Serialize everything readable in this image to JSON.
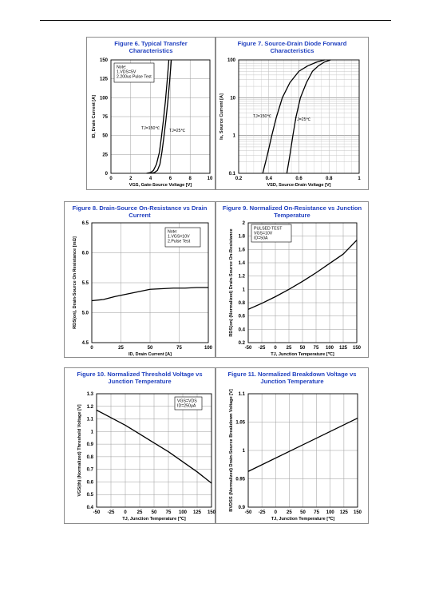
{
  "charts": [
    {
      "title_line1": "Figure 6. Typical Transfer Characteristics",
      "title_line2": "",
      "note_lines": [
        "Note:",
        "1.VDS=5V",
        "2.200us Pulse Test"
      ],
      "chart_data": {
        "type": "line",
        "title": "Figure 6. Typical Transfer Characteristics",
        "xlabel": "VGS, Gate-Source Voltage [V]",
        "ylabel": "ID, Drain Current [A]",
        "xlim": [
          0,
          10
        ],
        "ylim": [
          0,
          150
        ],
        "xticks": [
          0,
          2,
          4,
          6,
          8,
          10
        ],
        "yticks": [
          0,
          25,
          50,
          75,
          100,
          125,
          150
        ],
        "yscale": "linear",
        "grid": true,
        "series": [
          {
            "name": "TJ=150℃",
            "x": [
              3.6,
              4.0,
              4.3,
              4.6,
              4.9,
              5.1,
              5.3,
              5.5,
              5.7,
              5.85
            ],
            "y": [
              0,
              1,
              4,
              12,
              28,
              48,
              70,
              95,
              125,
              150
            ]
          },
          {
            "name": "TJ=25℃",
            "x": [
              4.0,
              4.4,
              4.7,
              4.95,
              5.15,
              5.35,
              5.55,
              5.75,
              5.95,
              6.1
            ],
            "y": [
              0,
              1,
              4,
              12,
              28,
              48,
              70,
              95,
              125,
              150
            ]
          }
        ]
      }
    },
    {
      "title_line1": "Figure 7. Source-Drain Diode Forward",
      "title_line2": "Characteristics",
      "note_lines": [],
      "chart_data": {
        "type": "line",
        "title": "Figure 7. Source-Drain Diode Forward Characteristics",
        "xlabel": "VSD, Source-Drain Voltage [V]",
        "ylabel": "Is, Source Current [A]",
        "xlim": [
          0.2,
          1.0
        ],
        "ylim": [
          0.1,
          100
        ],
        "xticks": [
          0.2,
          0.4,
          0.6,
          0.8,
          1
        ],
        "yticks": [
          0.1,
          1,
          10,
          100
        ],
        "yscale": "log",
        "grid": true,
        "series": [
          {
            "name": "TJ=150℃",
            "x": [
              0.36,
              0.39,
              0.42,
              0.45,
              0.49,
              0.54,
              0.6,
              0.66,
              0.72,
              0.77
            ],
            "y": [
              0.1,
              0.3,
              1,
              3,
              10,
              25,
              50,
              70,
              88,
              100
            ]
          },
          {
            "name": "TJ=25℃",
            "x": [
              0.52,
              0.54,
              0.56,
              0.58,
              0.61,
              0.65,
              0.69,
              0.73,
              0.77,
              0.81
            ],
            "y": [
              0.1,
              0.3,
              1,
              3,
              10,
              25,
              50,
              70,
              88,
              100
            ]
          }
        ]
      }
    },
    {
      "title_line1": "Figure 8. Drain-Source On-Resistance vs Drain",
      "title_line2": "Current",
      "note_lines": [
        "Note:",
        "1.VGS=10V",
        "2.Pulse Test"
      ],
      "chart_data": {
        "type": "line",
        "title": "Figure 8. Drain-Source On-Resistance vs Drain Current",
        "xlabel": "ID, Drain Current [A]",
        "ylabel": "RDS(on), Drain-Source On Resistance [mΩ]",
        "xlim": [
          0,
          100
        ],
        "ylim": [
          4.5,
          6.5
        ],
        "xticks": [
          0,
          25,
          50,
          75,
          100
        ],
        "yticks": [
          4.5,
          5.0,
          5.5,
          6.0,
          6.5
        ],
        "ytick_labels": [
          "4.5",
          "5.0",
          "5.5",
          "6.0",
          "6.5"
        ],
        "yscale": "linear",
        "grid": true,
        "series": [
          {
            "name": "",
            "x": [
              0,
              10,
              20,
              30,
              40,
              50,
              60,
              70,
              80,
              90,
              100
            ],
            "y": [
              5.2,
              5.22,
              5.27,
              5.31,
              5.35,
              5.39,
              5.4,
              5.41,
              5.41,
              5.42,
              5.42
            ]
          }
        ]
      }
    },
    {
      "title_line1": "Figure 9. Normalized On-Resistance vs Junction",
      "title_line2": "Temperature",
      "note_lines": [
        "PULSED TEST",
        "VGS=10V",
        "ID=50A"
      ],
      "chart_data": {
        "type": "line",
        "title": "Figure 9. Normalized On-Resistance vs Junction Temperature",
        "xlabel": "TJ, Junction Temperature [℃]",
        "ylabel": "RDS(on) (Normalized) Drain-Source On-Resistance",
        "xlim": [
          -50,
          150
        ],
        "ylim": [
          0.2,
          2.0
        ],
        "xticks": [
          -50,
          -25,
          0,
          25,
          50,
          75,
          100,
          125,
          150
        ],
        "yticks": [
          0.2,
          0.4,
          0.6,
          0.8,
          1,
          1.2,
          1.4,
          1.6,
          1.8,
          2
        ],
        "yscale": "linear",
        "grid": true,
        "series": [
          {
            "name": "",
            "x": [
              -50,
              -25,
              0,
              25,
              50,
              75,
              100,
              125,
              150
            ],
            "y": [
              0.7,
              0.79,
              0.89,
              1.0,
              1.12,
              1.25,
              1.39,
              1.53,
              1.74
            ]
          }
        ]
      }
    },
    {
      "title_line1": "Figure 10. Normalized Threshold Voltage vs",
      "title_line2": "Junction Temperature",
      "note_lines": [
        "VGS=VDS",
        "ID=250μA"
      ],
      "chart_data": {
        "type": "line",
        "title": "Figure 10. Normalized Threshold Voltage vs Junction Temperature",
        "xlabel": "TJ, Junction Temperature [℃]",
        "ylabel": "VGS(th) (Normalized) Threshold Voltage [V]",
        "xlim": [
          -50,
          150
        ],
        "ylim": [
          0.4,
          1.3
        ],
        "xticks": [
          -50,
          -25,
          0,
          25,
          50,
          75,
          100,
          125,
          150
        ],
        "yticks": [
          0.4,
          0.5,
          0.6,
          0.7,
          0.8,
          0.9,
          1,
          1.1,
          1.2,
          1.3
        ],
        "yscale": "linear",
        "grid": true,
        "series": [
          {
            "name": "",
            "x": [
              -50,
              -25,
              0,
              25,
              50,
              75,
              100,
              125,
              150
            ],
            "y": [
              1.17,
              1.11,
              1.05,
              0.98,
              0.91,
              0.84,
              0.76,
              0.68,
              0.59
            ]
          }
        ]
      }
    },
    {
      "title_line1": "Figure 11. Normalized Breakdown Voltage vs",
      "title_line2": "Junction Temperature",
      "note_lines": [],
      "chart_data": {
        "type": "line",
        "title": "Figure 11. Normalized Breakdown Voltage vs Junction Temperature",
        "xlabel": "TJ, Junction Temperature [℃]",
        "ylabel": "BVDSS (Normalized) Drain-Source Breakdown Voltage [V]",
        "xlim": [
          -50,
          150
        ],
        "ylim": [
          0.9,
          1.1
        ],
        "xticks": [
          -50,
          -25,
          0,
          25,
          50,
          75,
          100,
          125,
          150
        ],
        "yticks": [
          0.9,
          0.95,
          1,
          1.05,
          1.1
        ],
        "yscale": "linear",
        "grid": true,
        "series": [
          {
            "name": "",
            "x": [
              -50,
              150
            ],
            "y": [
              0.963,
              1.057
            ]
          }
        ]
      }
    }
  ]
}
